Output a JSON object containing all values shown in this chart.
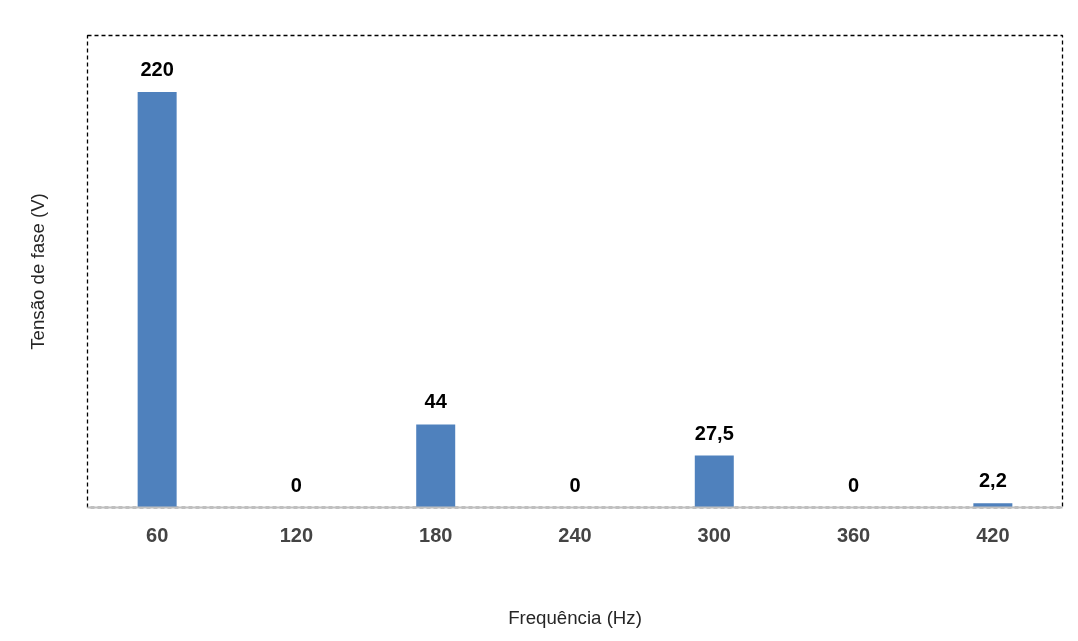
{
  "chart_data": {
    "type": "bar",
    "xlabel": "Frequência (Hz)",
    "ylabel": "Tensão de fase (V)",
    "categories": [
      "60",
      "120",
      "180",
      "240",
      "300",
      "360",
      "420"
    ],
    "values": [
      220,
      0,
      44,
      0,
      27.5,
      0,
      2.2
    ],
    "value_labels": [
      "220",
      "0",
      "44",
      "0",
      "27,5",
      "0",
      "2,2"
    ],
    "color": "#4f81bd",
    "tick_labels": "x",
    "grid": false
  }
}
